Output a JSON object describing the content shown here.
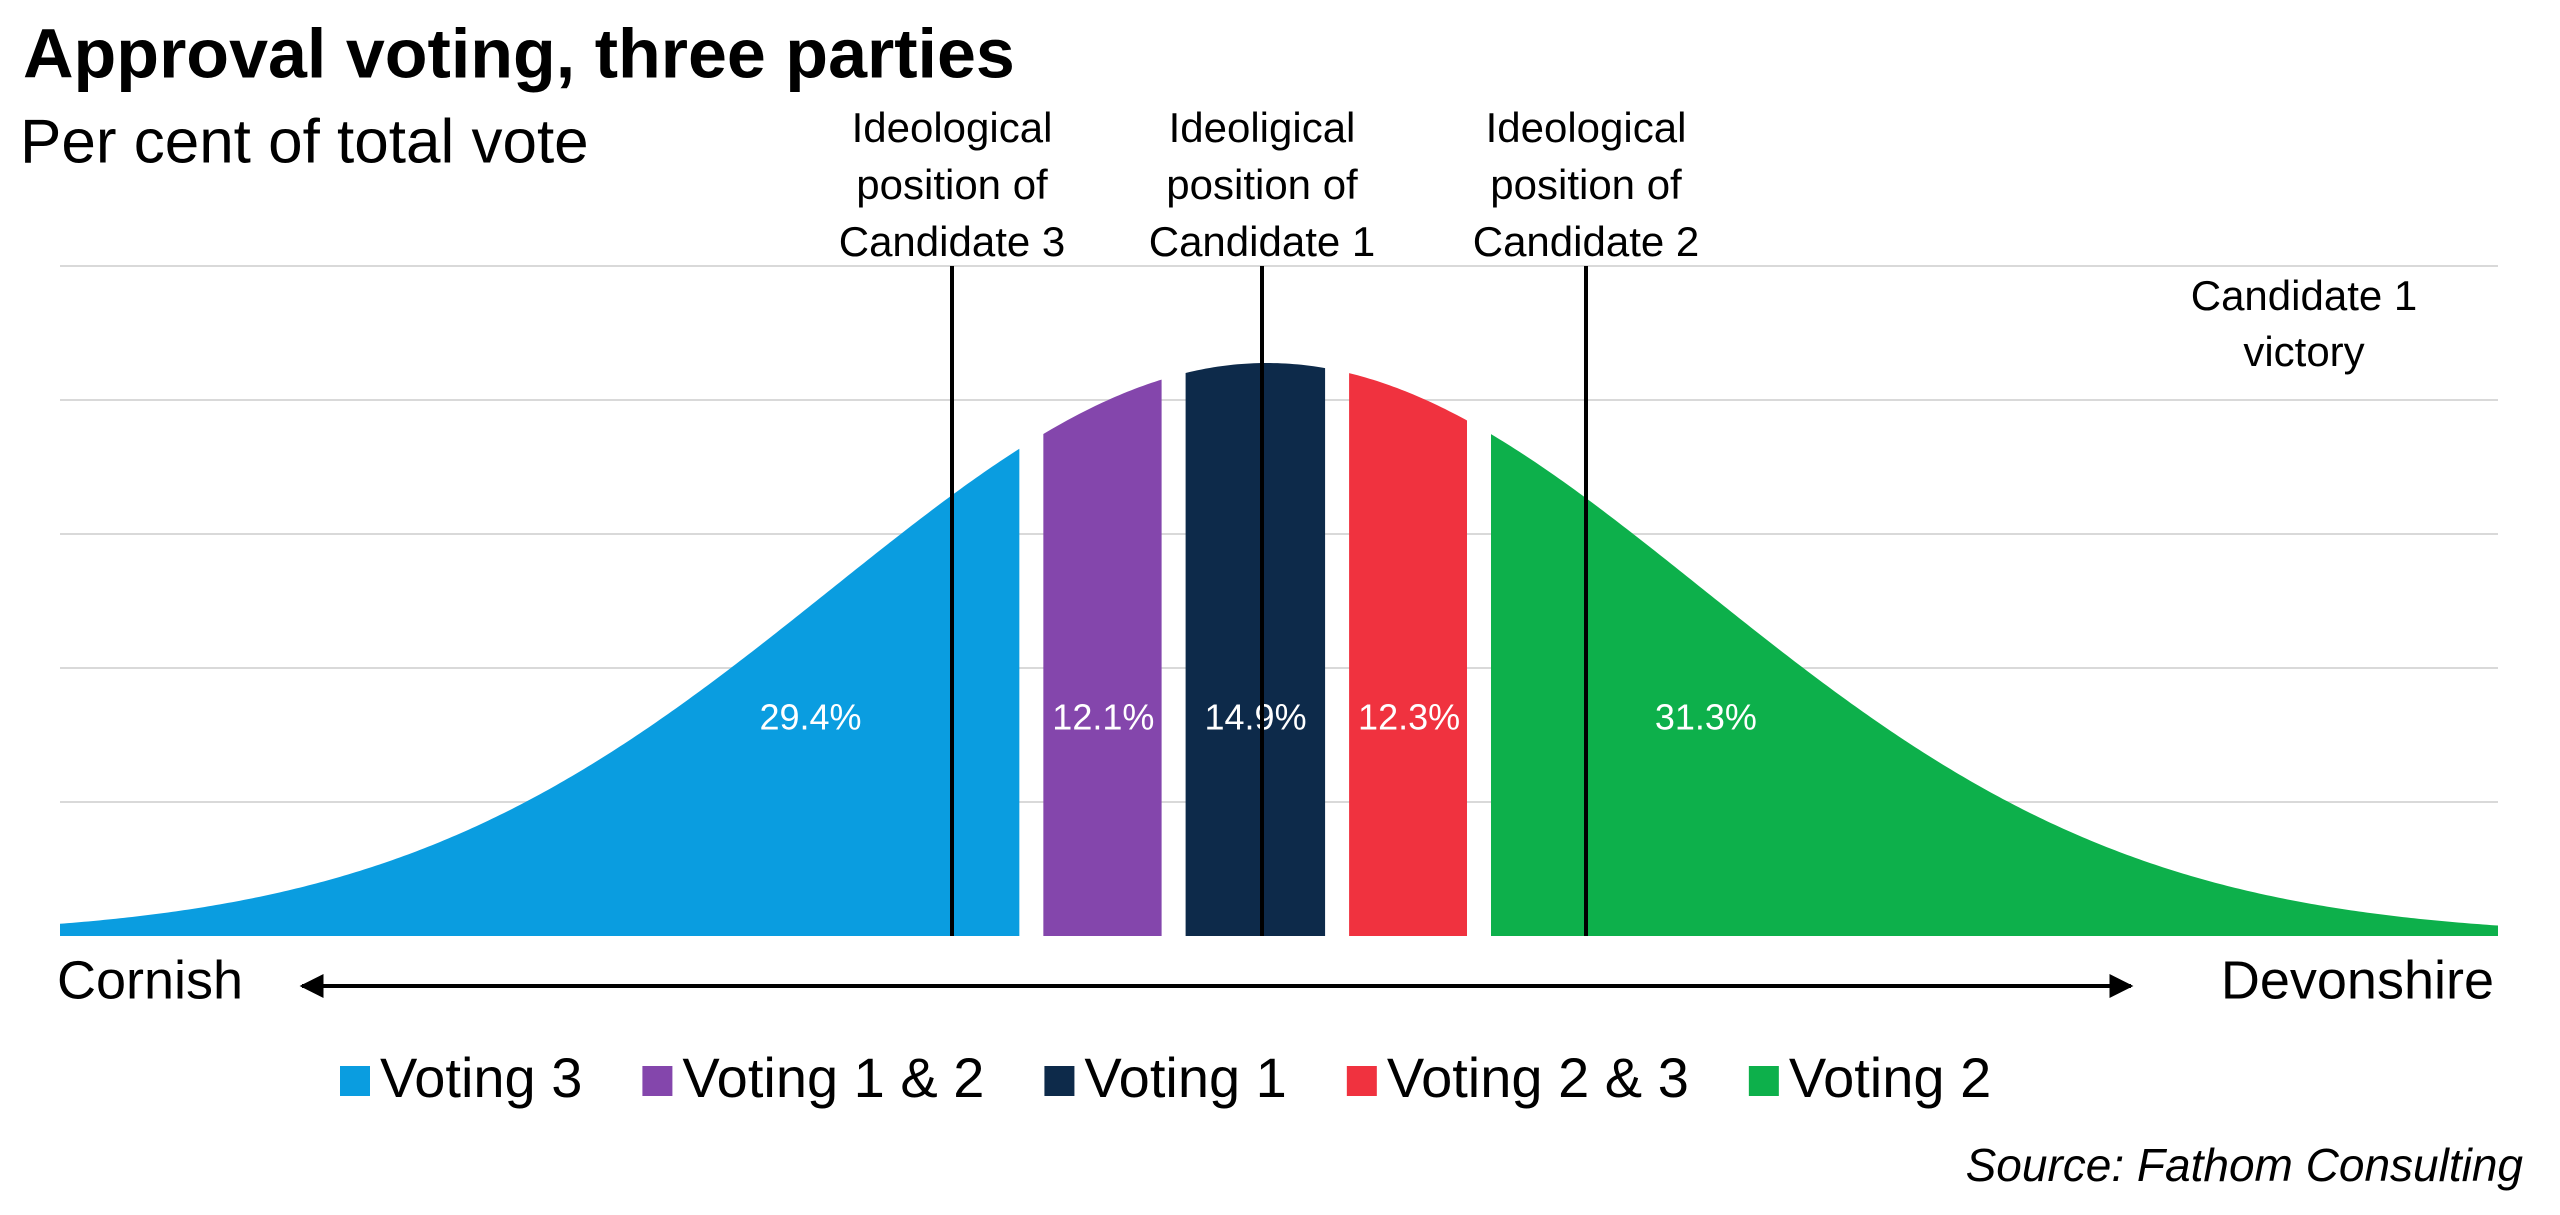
{
  "chart_data": {
    "type": "normal-area",
    "title": "Approval voting, three parties",
    "subtitle": "Per cent of total vote",
    "series": [
      {
        "name": "Voting 3",
        "color": "#0a9de0",
        "value": 29.4,
        "value_label": "29.4%"
      },
      {
        "name": "Voting 1 & 2",
        "color": "#8446ac",
        "value": 12.1,
        "value_label": "12.1%"
      },
      {
        "name": "Voting 1",
        "color": "#0d2a4a",
        "value": 14.9,
        "value_label": "14.9%"
      },
      {
        "name": "Voting 2 & 3",
        "color": "#f0323f",
        "value": 12.3,
        "value_label": "12.3%"
      },
      {
        "name": "Voting 2",
        "color": "#0db04b",
        "value": 31.3,
        "value_label": "31.3%"
      }
    ],
    "annotations": [
      {
        "lines": [
          "Ideological",
          "position of",
          "Candidate 3"
        ]
      },
      {
        "lines": [
          "Ideoligical",
          "position of",
          "Candidate 1"
        ]
      },
      {
        "lines": [
          "Ideological",
          "position of",
          "Candidate 2"
        ]
      }
    ],
    "note": [
      "Candidate 1",
      "victory"
    ],
    "axis_labels": [
      "Cornish",
      "Devonshire"
    ],
    "grid": true,
    "source": "Source: Fathom Consulting"
  }
}
